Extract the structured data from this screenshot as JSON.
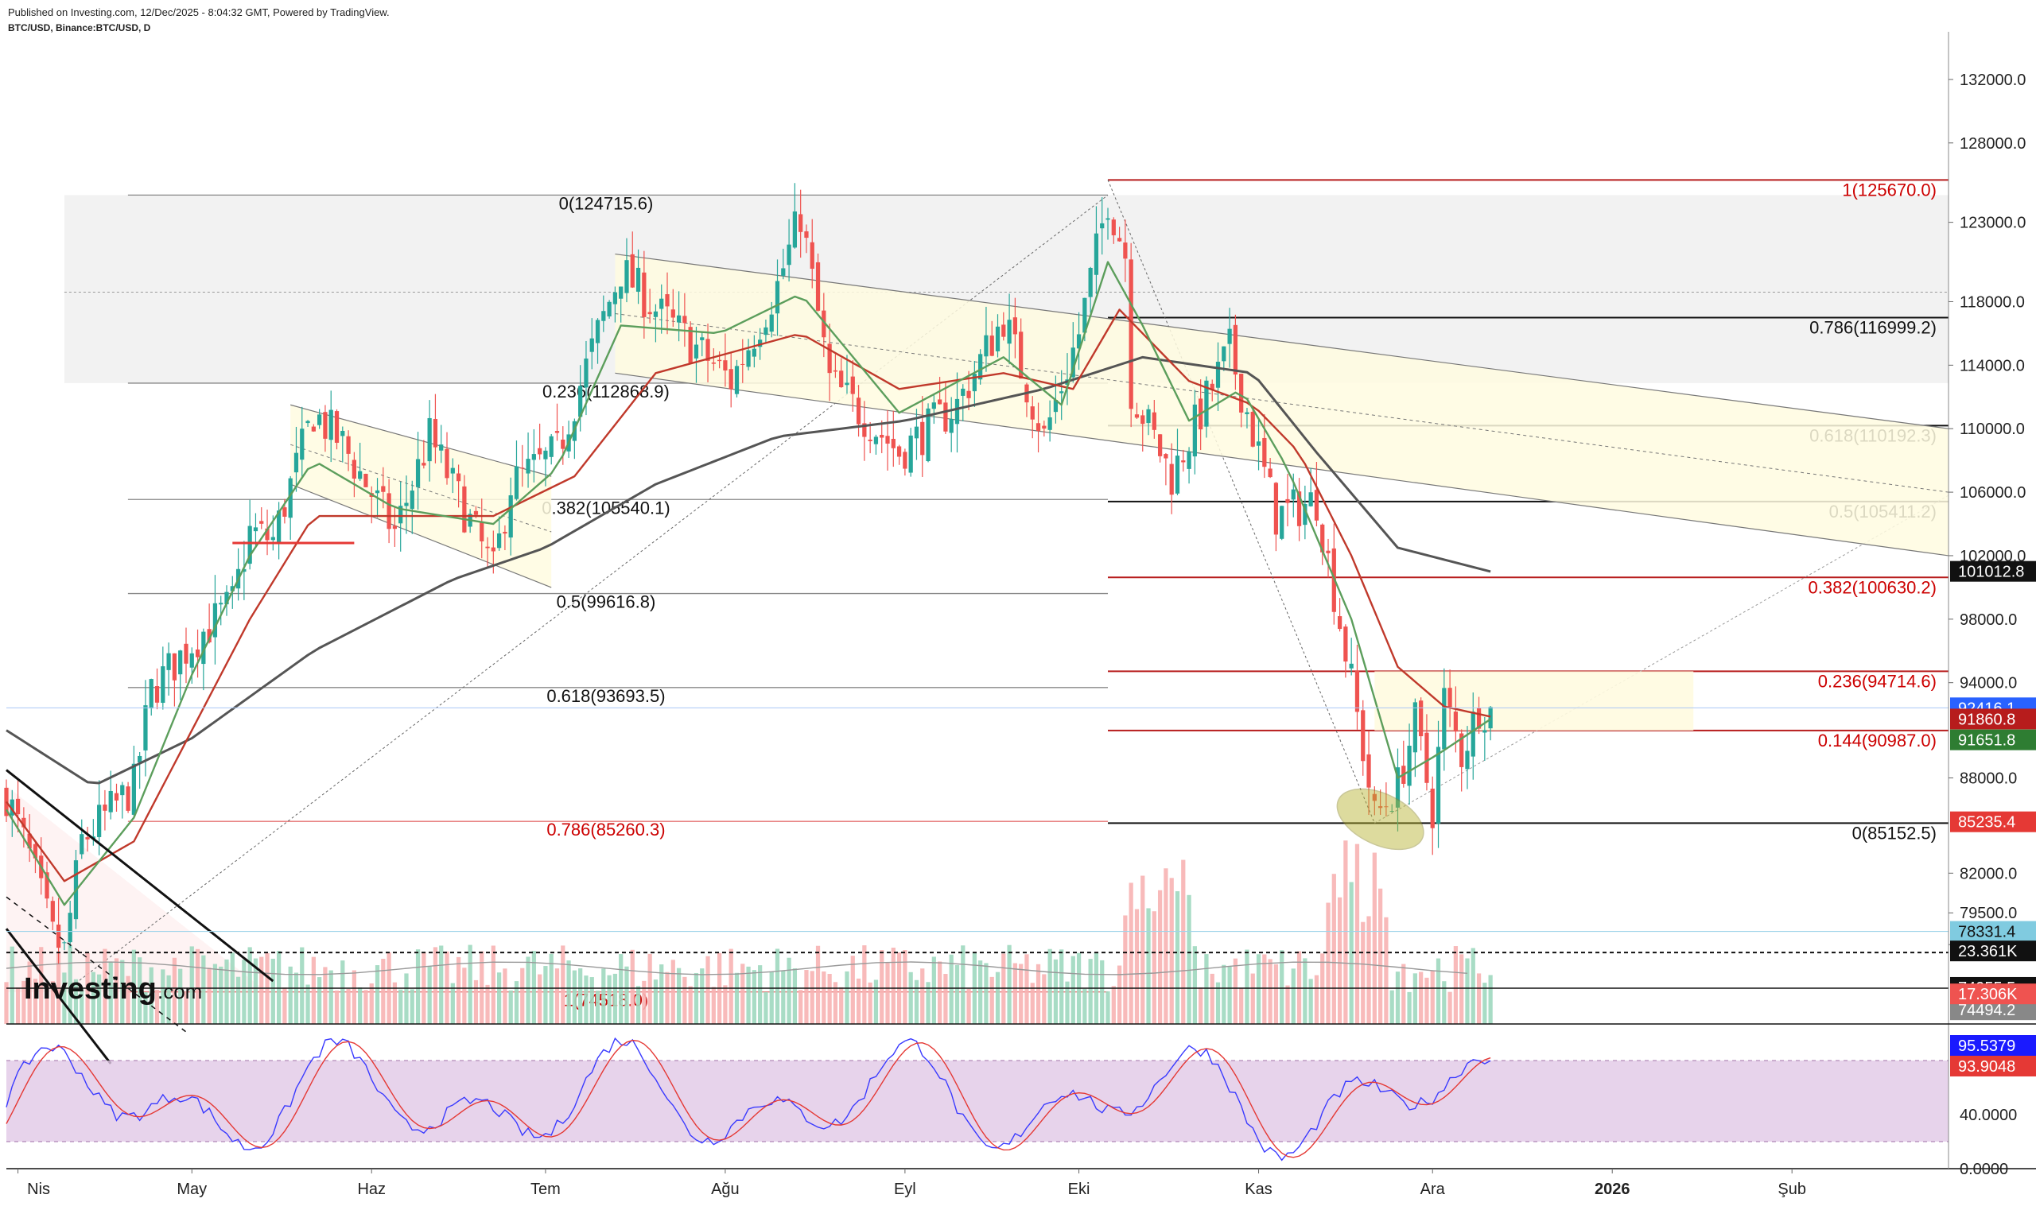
{
  "header": {
    "published": "Published on Investing.com, 12/Dec/2025 - 8:04:32 GMT, Powered by TradingView.",
    "symbol": "BTC/USD, Binance:BTC/USD, D"
  },
  "logo": {
    "brand": "Investing",
    "suffix": ".com"
  },
  "colors": {
    "up": "#26a69a",
    "down": "#ef5350",
    "fib_red": "#cc0000",
    "ema_fast": "#5c9e5c",
    "ema_mid": "#c0392b",
    "sma_slow": "#555555",
    "channel_fill": "#fffbe0",
    "zone_fill": "#f2f2f2",
    "stoch_fill": "#e1c8e6"
  },
  "chart_data": {
    "type": "candlestick",
    "symbol": "BTC/USD",
    "timeframe": "D",
    "x_range": [
      "2025-03-30",
      "2026-02-28"
    ],
    "y_range": [
      72500,
      134500
    ],
    "x_ticks": [
      {
        "date": "2025-04-01",
        "label": "Nis"
      },
      {
        "date": "2025-05-01",
        "label": "May"
      },
      {
        "date": "2025-06-01",
        "label": "Haz"
      },
      {
        "date": "2025-07-01",
        "label": "Tem"
      },
      {
        "date": "2025-08-01",
        "label": "Ağu"
      },
      {
        "date": "2025-09-01",
        "label": "Eyl"
      },
      {
        "date": "2025-10-01",
        "label": "Eki"
      },
      {
        "date": "2025-11-01",
        "label": "Kas"
      },
      {
        "date": "2025-12-01",
        "label": "Ara"
      },
      {
        "date": "2026-01-01",
        "label": "2026"
      },
      {
        "date": "2026-02-01",
        "label": "Şub"
      }
    ],
    "y_ticks": [
      {
        "value": 132000,
        "label": "132000.0"
      },
      {
        "value": 128000,
        "label": "128000.0"
      },
      {
        "value": 123000,
        "label": "123000.0"
      },
      {
        "value": 118000,
        "label": "118000.0"
      },
      {
        "value": 114000,
        "label": "114000.0"
      },
      {
        "value": 110000,
        "label": "110000.0"
      },
      {
        "value": 106000,
        "label": "106000.0"
      },
      {
        "value": 102000,
        "label": "102000.0"
      },
      {
        "value": 98000,
        "label": "98000.0"
      },
      {
        "value": 94000,
        "label": "94000.0"
      },
      {
        "value": 88000,
        "label": "88000.0"
      },
      {
        "value": 82000,
        "label": "82000.0"
      },
      {
        "value": 79500,
        "label": "79500.0"
      },
      {
        "value": 77500,
        "label": "77500.0"
      }
    ],
    "price_path": [
      [
        "2025-03-30",
        87000
      ],
      [
        "2025-04-03",
        83000
      ],
      [
        "2025-04-07",
        78000
      ],
      [
        "2025-04-09",
        77000
      ],
      [
        "2025-04-12",
        84000
      ],
      [
        "2025-04-21",
        87500
      ],
      [
        "2025-04-24",
        93500
      ],
      [
        "2025-05-01",
        96500
      ],
      [
        "2025-05-08",
        99000
      ],
      [
        "2025-05-11",
        103500
      ],
      [
        "2025-05-15",
        103000
      ],
      [
        "2025-05-22",
        111000
      ],
      [
        "2025-05-27",
        109000
      ],
      [
        "2025-06-05",
        103500
      ],
      [
        "2025-06-11",
        109500
      ],
      [
        "2025-06-22",
        101000
      ],
      [
        "2025-06-25",
        106500
      ],
      [
        "2025-07-03",
        108500
      ],
      [
        "2025-07-10",
        116000
      ],
      [
        "2025-07-14",
        120000
      ],
      [
        "2025-07-20",
        117500
      ],
      [
        "2025-08-02",
        113000
      ],
      [
        "2025-08-10",
        119000
      ],
      [
        "2025-08-14",
        123500
      ],
      [
        "2025-08-19",
        113000
      ],
      [
        "2025-08-31",
        108500
      ],
      [
        "2025-09-10",
        111500
      ],
      [
        "2025-09-18",
        117000
      ],
      [
        "2025-09-25",
        109500
      ],
      [
        "2025-10-01",
        116000
      ],
      [
        "2025-10-06",
        124500
      ],
      [
        "2025-10-09",
        121000
      ],
      [
        "2025-10-10",
        112500
      ],
      [
        "2025-10-17",
        107000
      ],
      [
        "2025-10-27",
        115000
      ],
      [
        "2025-11-04",
        104500
      ],
      [
        "2025-11-11",
        105500
      ],
      [
        "2025-11-17",
        94000
      ],
      [
        "2025-11-21",
        85500
      ],
      [
        "2025-11-25",
        87500
      ],
      [
        "2025-11-28",
        91500
      ],
      [
        "2025-12-01",
        86000
      ],
      [
        "2025-12-03",
        93000
      ],
      [
        "2025-12-06",
        89500
      ],
      [
        "2025-12-09",
        92500
      ],
      [
        "2025-12-11",
        92200
      ]
    ],
    "ema_fast_path": [
      [
        "2025-03-30",
        86000
      ],
      [
        "2025-04-09",
        80000
      ],
      [
        "2025-04-21",
        85500
      ],
      [
        "2025-05-01",
        94500
      ],
      [
        "2025-05-11",
        102000
      ],
      [
        "2025-05-22",
        108000
      ],
      [
        "2025-06-05",
        105000
      ],
      [
        "2025-06-22",
        104000
      ],
      [
        "2025-07-03",
        107500
      ],
      [
        "2025-07-14",
        116500
      ],
      [
        "2025-07-31",
        116000
      ],
      [
        "2025-08-14",
        118500
      ],
      [
        "2025-08-31",
        111000
      ],
      [
        "2025-09-18",
        114500
      ],
      [
        "2025-09-28",
        111500
      ],
      [
        "2025-10-06",
        120500
      ],
      [
        "2025-10-12",
        116500
      ],
      [
        "2025-10-20",
        110500
      ],
      [
        "2025-10-29",
        112500
      ],
      [
        "2025-11-06",
        107500
      ],
      [
        "2025-11-17",
        98000
      ],
      [
        "2025-11-25",
        88000
      ],
      [
        "2025-12-02",
        89500
      ],
      [
        "2025-12-11",
        91700
      ]
    ],
    "ema_mid_path": [
      [
        "2025-03-30",
        86500
      ],
      [
        "2025-04-09",
        81500
      ],
      [
        "2025-04-21",
        84000
      ],
      [
        "2025-05-01",
        91000
      ],
      [
        "2025-05-11",
        98000
      ],
      [
        "2025-05-22",
        104500
      ],
      [
        "2025-06-22",
        104500
      ],
      [
        "2025-07-06",
        107000
      ],
      [
        "2025-07-20",
        113500
      ],
      [
        "2025-08-14",
        116000
      ],
      [
        "2025-08-31",
        112500
      ],
      [
        "2025-09-18",
        113500
      ],
      [
        "2025-09-30",
        112500
      ],
      [
        "2025-10-08",
        117500
      ],
      [
        "2025-10-20",
        113000
      ],
      [
        "2025-10-31",
        111500
      ],
      [
        "2025-11-08",
        108500
      ],
      [
        "2025-11-17",
        102000
      ],
      [
        "2025-11-25",
        95000
      ],
      [
        "2025-12-03",
        92500
      ],
      [
        "2025-12-11",
        91860
      ]
    ],
    "sma_slow_path": [
      [
        "2025-03-30",
        91000
      ],
      [
        "2025-04-14",
        87500
      ],
      [
        "2025-05-01",
        90500
      ],
      [
        "2025-05-22",
        96000
      ],
      [
        "2025-06-15",
        100500
      ],
      [
        "2025-07-01",
        102500
      ],
      [
        "2025-07-20",
        106500
      ],
      [
        "2025-08-10",
        109500
      ],
      [
        "2025-09-01",
        110500
      ],
      [
        "2025-09-25",
        112500
      ],
      [
        "2025-10-12",
        114500
      ],
      [
        "2025-10-31",
        113500
      ],
      [
        "2025-11-11",
        108500
      ],
      [
        "2025-11-25",
        102500
      ],
      [
        "2025-12-11",
        101000
      ]
    ],
    "channels": [
      {
        "start": [
          "2025-05-18",
          111500
        ],
        "end": [
          "2025-07-02",
          107000
        ],
        "lower_start": [
          "2025-05-18",
          106500
        ],
        "lower_end": [
          "2025-07-02",
          100000
        ]
      },
      {
        "start": [
          "2025-07-13",
          121000
        ],
        "end": [
          "2026-02-28",
          110000
        ],
        "lower_start": [
          "2025-07-13",
          113500
        ],
        "lower_end": [
          "2026-02-28",
          102000
        ]
      }
    ],
    "fib_retracement_1": {
      "x_start": "2025-04-09",
      "x_end": "2025-10-01",
      "levels": [
        {
          "value": 124715.6,
          "label": "0(124715.6)"
        },
        {
          "value": 112868.9,
          "label": "0.236(112868.9)"
        },
        {
          "value": 105540.1,
          "label": "0.382(105540.1)"
        },
        {
          "value": 99616.8,
          "label": "0.5(99616.8)"
        },
        {
          "value": 93693.5,
          "label": "0.618(93693.5)"
        },
        {
          "value": 85260.3,
          "label": "0.786(85260.3)"
        },
        {
          "value": 74518.0,
          "label": "1(74518.0)"
        }
      ]
    },
    "fib_retracement_2": {
      "x_start": "2025-10-06",
      "x_end": "2026-02-28",
      "levels": [
        {
          "value": 125670.0,
          "label": "1(125670.0)"
        },
        {
          "value": 116999.2,
          "label": "0.786(116999.2)"
        },
        {
          "value": 110192.3,
          "label": "0.618(110192.3)"
        },
        {
          "value": 105411.2,
          "label": "0.5(105411.2)"
        },
        {
          "value": 100630.2,
          "label": "0.382(100630.2)"
        },
        {
          "value": 94714.6,
          "label": "0.236(94714.6)"
        },
        {
          "value": 90987.0,
          "label": "0.144(90987.0)"
        },
        {
          "value": 85152.5,
          "label": "0(85152.5)"
        }
      ]
    },
    "price_badges": [
      {
        "value": 101012.8,
        "label": "101012.8",
        "color": "#111111"
      },
      {
        "value": 92416.1,
        "label": "92416.1",
        "color": "#2962ff"
      },
      {
        "value": 91860.8,
        "label": "91860.8",
        "color": "#b71c1c"
      },
      {
        "value": 91651.8,
        "label": "91651.8",
        "color": "#2e7d32"
      },
      {
        "value": 85235.4,
        "label": "85235.4",
        "color": "#e53935"
      },
      {
        "value": 78331.4,
        "label": "78331.4",
        "color": "#80cbe0"
      },
      {
        "value": 74955.5,
        "label": "74955.5",
        "color": "#111111"
      },
      {
        "value": 74494.2,
        "label": "74494.2",
        "color": "#888888"
      }
    ],
    "volume": {
      "badges": [
        {
          "label": "23.361K",
          "color": "#111111"
        },
        {
          "label": "17.306K",
          "color": "#ef5350"
        }
      ]
    },
    "stochastic": {
      "y_range": [
        0,
        100
      ],
      "upper_band": 80,
      "lower_band": 20,
      "y_ticks": [
        {
          "value": 40,
          "label": "40.0000"
        },
        {
          "value": 0,
          "label": "0.0000"
        }
      ],
      "badges": [
        {
          "value": 95.5379,
          "label": "95.5379",
          "color": "#1a1aff"
        },
        {
          "value": 93.9048,
          "label": "93.9048",
          "color": "#e53935"
        }
      ]
    }
  }
}
